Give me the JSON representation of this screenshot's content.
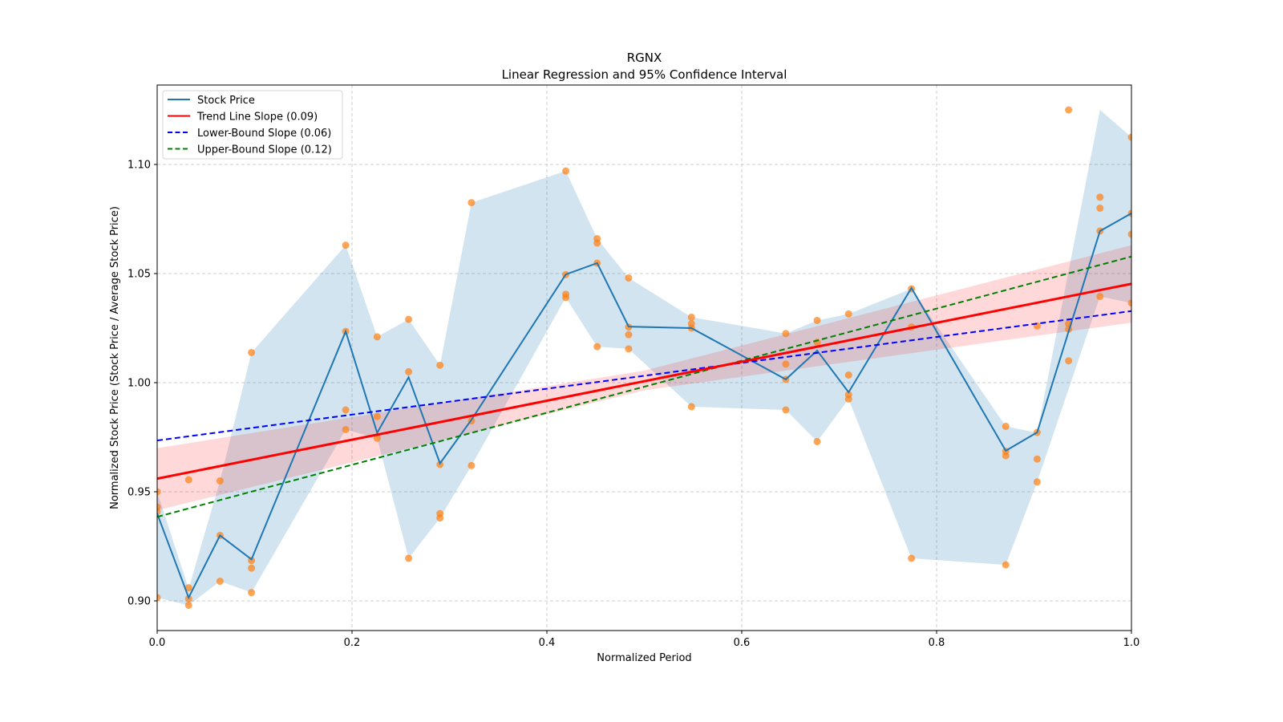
{
  "chart_data": {
    "type": "line",
    "title": "RGNX",
    "subtitle": "Linear Regression and 95% Confidence Interval",
    "xlabel": "Normalized Period",
    "ylabel": "Normalized Stock Price (Stock Price / Average Stock Price)",
    "xlim": [
      0,
      1.0
    ],
    "ylim": [
      0.886,
      1.1365
    ],
    "grid": true,
    "legend_position": "top-left",
    "x_ticks": [
      0.0,
      0.2,
      0.4,
      0.6,
      0.8,
      1.0
    ],
    "x_tick_labels": [
      "0.0",
      "0.2",
      "0.4",
      "0.6",
      "0.8",
      "1.0"
    ],
    "y_ticks": [
      0.9,
      0.95,
      1.0,
      1.05,
      1.1
    ],
    "y_tick_labels": [
      "0.90",
      "0.95",
      "1.00",
      "1.05",
      "1.10"
    ],
    "legend": [
      {
        "label": "Stock Price",
        "color": "#1f77b4",
        "style": "solid"
      },
      {
        "label": "Trend Line Slope (0.09)",
        "color": "#ff0000",
        "style": "solid"
      },
      {
        "label": "Lower-Bound Slope (0.06)",
        "color": "#0000ff",
        "style": "dashed"
      },
      {
        "label": "Upper-Bound Slope (0.12)",
        "color": "#008000",
        "style": "dashed"
      }
    ],
    "stock_price": {
      "x": [
        0.0,
        0.0323,
        0.0645,
        0.0968,
        0.1935,
        0.2258,
        0.2581,
        0.2903,
        0.3226,
        0.4194,
        0.4516,
        0.4839,
        0.5484,
        0.6452,
        0.6774,
        0.7097,
        0.7742,
        0.871,
        0.9032,
        0.9677,
        1.0
      ],
      "close": [
        0.94,
        0.9015,
        0.93,
        0.919,
        1.0235,
        0.977,
        1.0025,
        0.963,
        0.983,
        1.0496,
        1.0548,
        1.0257,
        1.025,
        1.0015,
        1.0147,
        0.9956,
        1.0434,
        0.9688,
        0.9772,
        1.0695,
        1.0776
      ],
      "high": [
        0.95,
        0.9055,
        0.955,
        1.0138,
        1.063,
        1.021,
        1.029,
        1.008,
        1.0825,
        1.097,
        1.066,
        1.048,
        1.03,
        1.0225,
        1.0285,
        1.0315,
        1.043,
        0.98,
        0.977,
        1.125,
        1.1125
      ],
      "low": [
        0.9015,
        0.898,
        0.909,
        0.9038,
        0.9785,
        0.9745,
        0.9195,
        0.938,
        0.962,
        1.039,
        1.0165,
        1.0155,
        0.989,
        0.9875,
        0.973,
        0.9925,
        0.9195,
        0.9165,
        0.9545,
        1.0395,
        1.0365
      ]
    },
    "scatter_points": {
      "x": [
        0.0,
        0.0,
        0.0,
        0.0,
        0.0323,
        0.0323,
        0.0323,
        0.0323,
        0.0645,
        0.0645,
        0.0645,
        0.0968,
        0.0968,
        0.0968,
        0.0968,
        0.1935,
        0.1935,
        0.1935,
        0.1935,
        0.2258,
        0.2258,
        0.2258,
        0.2581,
        0.2581,
        0.2581,
        0.2903,
        0.2903,
        0.2903,
        0.2903,
        0.3226,
        0.3226,
        0.3226,
        0.4194,
        0.4194,
        0.4194,
        0.4194,
        0.4516,
        0.4516,
        0.4516,
        0.4516,
        0.4839,
        0.4839,
        0.4839,
        0.4839,
        0.5484,
        0.5484,
        0.5484,
        0.5484,
        0.6452,
        0.6452,
        0.6452,
        0.6452,
        0.6774,
        0.6774,
        0.6774,
        0.7097,
        0.7097,
        0.7097,
        0.7097,
        0.7742,
        0.7742,
        0.7742,
        0.871,
        0.871,
        0.871,
        0.871,
        0.9032,
        0.9032,
        0.9032,
        0.9032,
        0.9355,
        0.9355,
        0.9355,
        0.9355,
        0.9677,
        0.9677,
        0.9677,
        0.9677,
        1.0,
        1.0,
        1.0,
        1.0
      ],
      "y": [
        0.95,
        0.943,
        0.941,
        0.9015,
        0.9555,
        0.906,
        0.901,
        0.898,
        0.955,
        0.93,
        0.909,
        1.0138,
        0.9185,
        0.915,
        0.9038,
        1.063,
        1.0235,
        0.9875,
        0.9785,
        1.021,
        0.9845,
        0.9745,
        1.029,
        1.005,
        0.9195,
        1.008,
        0.9625,
        0.94,
        0.938,
        1.0825,
        0.9825,
        0.962,
        1.097,
        1.0495,
        1.0405,
        1.039,
        1.066,
        1.064,
        1.0548,
        1.0165,
        1.048,
        1.0255,
        1.022,
        1.0155,
        1.03,
        1.027,
        1.025,
        0.989,
        1.0225,
        1.0085,
        1.0015,
        0.9875,
        1.0285,
        1.0185,
        0.973,
        1.0315,
        1.0035,
        0.9945,
        0.9925,
        1.043,
        1.0255,
        0.9195,
        0.98,
        0.9685,
        0.9665,
        0.9165,
        1.026,
        0.9772,
        0.965,
        0.9545,
        1.125,
        1.027,
        1.0245,
        1.01,
        1.085,
        1.08,
        1.0695,
        1.0395,
        1.1125,
        1.0776,
        1.068,
        1.0365
      ],
      "color": "#ff7f0e"
    },
    "trend_line": {
      "x": [
        0.0,
        1.0
      ],
      "y": [
        0.956,
        1.0453
      ],
      "color": "#ff0000"
    },
    "trend_ci": {
      "x": [
        0.0,
        0.5,
        1.0
      ],
      "lower": [
        0.9415,
        0.9965,
        1.0275
      ],
      "upper": [
        0.97,
        1.0055,
        1.063
      ],
      "color": "#ff0000"
    },
    "lower_bound_line": {
      "x": [
        0.0,
        1.0
      ],
      "y": [
        0.9735,
        1.0328
      ],
      "color": "#0000ff"
    },
    "upper_bound_line": {
      "x": [
        0.0,
        1.0
      ],
      "y": [
        0.9385,
        1.0578
      ],
      "color": "#008000"
    }
  }
}
